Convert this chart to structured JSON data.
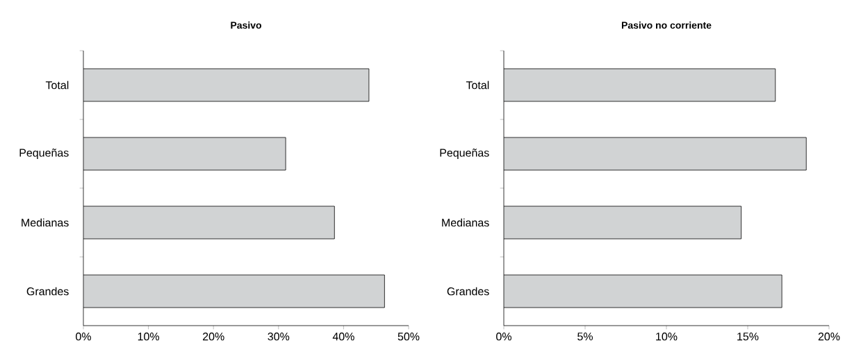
{
  "chart_data": [
    {
      "type": "bar",
      "orientation": "horizontal",
      "title": "Pasivo",
      "categories": [
        "Total",
        "Pequeñas",
        "Medianas",
        "Grandes"
      ],
      "values": [
        43.9,
        31.1,
        38.6,
        46.3
      ],
      "color": "#d1d3d4",
      "xlim": [
        0,
        50
      ],
      "xticks": [
        {
          "value": 0,
          "label": "0%"
        },
        {
          "value": 10,
          "label": "10%"
        },
        {
          "value": 20,
          "label": "20%"
        },
        {
          "value": 30,
          "label": "30%"
        },
        {
          "value": 40,
          "label": "40%"
        },
        {
          "value": 50,
          "label": "50%"
        }
      ]
    },
    {
      "type": "bar",
      "orientation": "horizontal",
      "title": "Pasivo no corriente",
      "categories": [
        "Total",
        "Pequeñas",
        "Medianas",
        "Grandes"
      ],
      "values": [
        16.7,
        18.6,
        14.6,
        17.1
      ],
      "color": "#d1d3d4",
      "xlim": [
        0,
        20
      ],
      "xticks": [
        {
          "value": 0,
          "label": "0%"
        },
        {
          "value": 5,
          "label": "5%"
        },
        {
          "value": 10,
          "label": "10%"
        },
        {
          "value": 15,
          "label": "15%"
        },
        {
          "value": 20,
          "label": "20%"
        }
      ]
    }
  ]
}
